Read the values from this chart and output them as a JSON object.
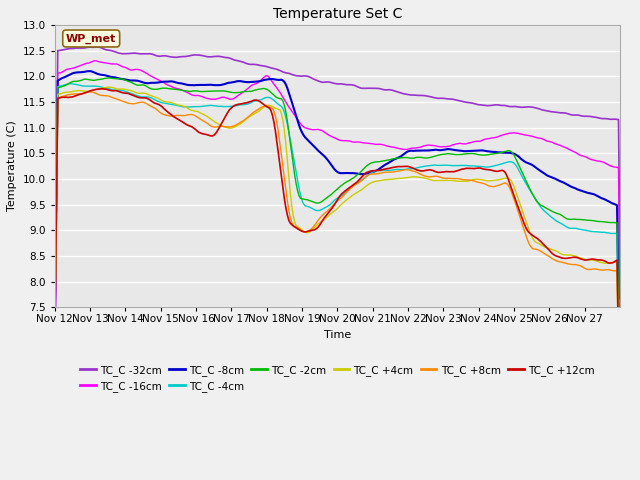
{
  "title": "Temperature Set C",
  "xlabel": "Time",
  "ylabel": "Temperature (C)",
  "ylim": [
    7.5,
    13.0
  ],
  "xlim": [
    0,
    384
  ],
  "x_tick_labels": [
    "Nov 12",
    "Nov 13",
    "Nov 14",
    "Nov 15",
    "Nov 16",
    "Nov 17",
    "Nov 18",
    "Nov 19",
    "Nov 20",
    "Nov 21",
    "Nov 22",
    "Nov 23",
    "Nov 24",
    "Nov 25",
    "Nov 26",
    "Nov 27"
  ],
  "x_tick_positions": [
    0,
    24,
    48,
    72,
    96,
    120,
    144,
    168,
    192,
    216,
    240,
    264,
    288,
    312,
    336,
    360
  ],
  "colors": {
    "TC_C -32cm": "#9933cc",
    "TC_C -16cm": "#ff00ff",
    "TC_C -8cm": "#0000cc",
    "TC_C -4cm": "#00cccc",
    "TC_C -2cm": "#00bb00",
    "TC_C +4cm": "#cccc00",
    "TC_C +8cm": "#ff8800",
    "TC_C +12cm": "#cc0000"
  },
  "background_color": "#e8e8e8",
  "grid_color": "#ffffff",
  "fig_bg": "#f0f0f0",
  "n_points": 385
}
